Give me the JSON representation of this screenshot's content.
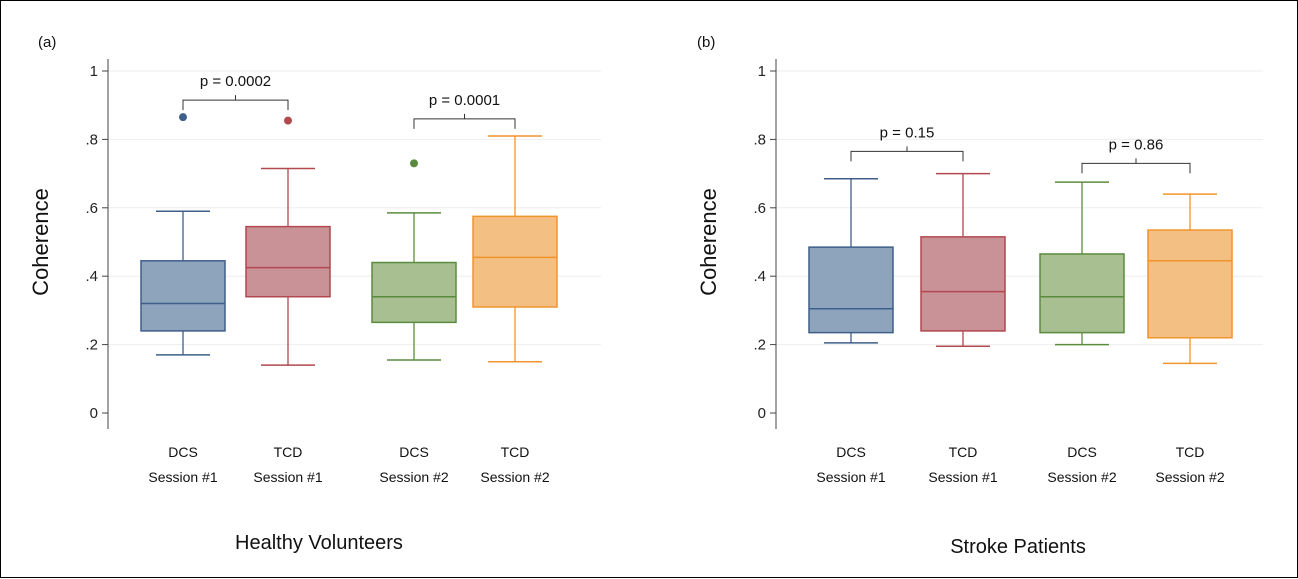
{
  "chart_data": [
    {
      "type": "box",
      "panel_label": "(a)",
      "title": "",
      "xlabel": "Healthy Volunteers",
      "ylabel": "Coherence",
      "ylim": [
        0,
        1
      ],
      "yticks": [
        {
          "value": 0,
          "label": "0"
        },
        {
          "value": 0.2,
          "label": ".2"
        },
        {
          "value": 0.4,
          "label": ".4"
        },
        {
          "value": 0.6,
          "label": ".6"
        },
        {
          "value": 0.8,
          "label": ".8"
        },
        {
          "value": 1,
          "label": "1"
        }
      ],
      "grid": true,
      "categories": [
        {
          "line1": "DCS",
          "line2": "Session #1",
          "color": "#3e5f8a",
          "fill": "#8ea4bd",
          "min": 0.17,
          "q1": 0.24,
          "median": 0.32,
          "q3": 0.445,
          "max": 0.59,
          "outliers": [
            0.865
          ]
        },
        {
          "line1": "TCD",
          "line2": "Session #1",
          "color": "#b0484e",
          "fill": "#c99297",
          "min": 0.14,
          "q1": 0.34,
          "median": 0.425,
          "q3": 0.545,
          "max": 0.715,
          "outliers": [
            0.855
          ]
        },
        {
          "line1": "DCS",
          "line2": "Session #2",
          "color": "#5b8b3e",
          "fill": "#a7bf91",
          "min": 0.155,
          "q1": 0.265,
          "median": 0.34,
          "q3": 0.44,
          "max": 0.585,
          "outliers": [
            0.73
          ]
        },
        {
          "line1": "TCD",
          "line2": "Session #2",
          "color": "#f0942d",
          "fill": "#f4bf83",
          "min": 0.15,
          "q1": 0.31,
          "median": 0.455,
          "q3": 0.575,
          "max": 0.81,
          "outliers": []
        }
      ],
      "annotations": [
        {
          "text": "p = 0.0002",
          "from": 0,
          "to": 1,
          "y": 0.915
        },
        {
          "text": "p = 0.0001",
          "from": 2,
          "to": 3,
          "y": 0.86
        }
      ]
    },
    {
      "type": "box",
      "panel_label": "(b)",
      "title": "",
      "xlabel": "Stroke Patients",
      "ylabel": "Coherence",
      "ylim": [
        0,
        1
      ],
      "yticks": [
        {
          "value": 0,
          "label": "0"
        },
        {
          "value": 0.2,
          "label": ".2"
        },
        {
          "value": 0.4,
          "label": ".4"
        },
        {
          "value": 0.6,
          "label": ".6"
        },
        {
          "value": 0.8,
          "label": ".8"
        },
        {
          "value": 1,
          "label": "1"
        }
      ],
      "grid": true,
      "categories": [
        {
          "line1": "DCS",
          "line2": "Session #1",
          "color": "#3e5f8a",
          "fill": "#8ea4bd",
          "min": 0.205,
          "q1": 0.235,
          "median": 0.305,
          "q3": 0.485,
          "max": 0.685,
          "outliers": []
        },
        {
          "line1": "TCD",
          "line2": "Session #1",
          "color": "#b0484e",
          "fill": "#c99297",
          "min": 0.195,
          "q1": 0.24,
          "median": 0.355,
          "q3": 0.515,
          "max": 0.7,
          "outliers": []
        },
        {
          "line1": "DCS",
          "line2": "Session #2",
          "color": "#5b8b3e",
          "fill": "#a7bf91",
          "min": 0.2,
          "q1": 0.235,
          "median": 0.34,
          "q3": 0.465,
          "max": 0.675,
          "outliers": []
        },
        {
          "line1": "TCD",
          "line2": "Session #2",
          "color": "#f0942d",
          "fill": "#f4bf83",
          "min": 0.145,
          "q1": 0.22,
          "median": 0.445,
          "q3": 0.535,
          "max": 0.64,
          "outliers": []
        }
      ],
      "annotations": [
        {
          "text": "p = 0.15",
          "from": 0,
          "to": 1,
          "y": 0.765
        },
        {
          "text": "p = 0.86",
          "from": 2,
          "to": 3,
          "y": 0.73
        }
      ]
    }
  ]
}
